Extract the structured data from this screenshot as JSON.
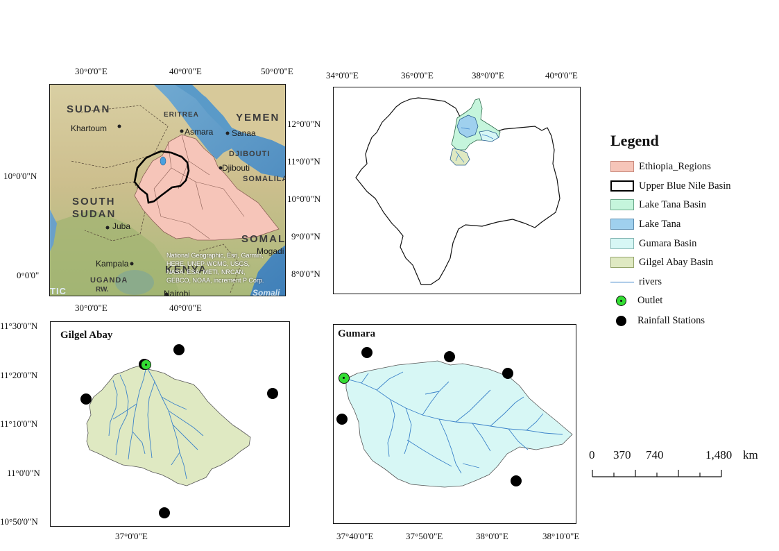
{
  "overview_map": {
    "top_ticks": [
      "30°0'0\"E",
      "40°0'0\"E",
      "50°0'0\"E"
    ],
    "bottom_ticks": [
      "30°0'0\"E",
      "40°0'0\"E"
    ],
    "left_ticks": [
      "10°0'0\"N",
      "0°0'0\""
    ],
    "countries": {
      "sudan": "SUDAN",
      "eritrea": "ERITREA",
      "yemen": "YEMEN",
      "djibouti": "DJIBOUTI",
      "somaliland": "SOMALILAN",
      "south_sudan_1": "SOUTH",
      "south_sudan_2": "SUDAN",
      "somalia": "SOMALIA",
      "kenya": "KENYA",
      "uganda": "UGANDA",
      "rw": "RW.",
      "somali_sea": "Somali",
      "tic": "TIC"
    },
    "cities": {
      "khartoum": "Khartoum",
      "asmara": "Asmara",
      "sanaa": "Sanaa",
      "djibouti": "Djibouti",
      "juba": "Juba",
      "kampala": "Kampala",
      "nairobi": "Nairobi",
      "mogadishu": "Mogadi"
    },
    "credits": [
      "National Geographic, Esri, Garmin,",
      "HERE, UNEP-WCMC, USGS,",
      "NASA, ESA, METI, NRCAN,",
      "GEBCO, NOAA, increment P Corp."
    ]
  },
  "basin_map": {
    "top_ticks": [
      "34°0'0\"E",
      "36°0'0\"E",
      "38°0'0\"E",
      "40°0'0\"E"
    ],
    "left_ticks": [
      "12°0'0\"N",
      "11°0'0\"N",
      "10°0'0\"N",
      "9°0'0\"N",
      "8°0'0\"N"
    ]
  },
  "gilgel_map": {
    "title": "Gilgel Abay",
    "left_ticks": [
      "11°30'0\"N",
      "11°20'0\"N",
      "11°10'0\"N",
      "11°0'0\"N",
      "10°50'0\"N"
    ],
    "bottom_ticks": [
      "37°0'0\"E"
    ]
  },
  "gumara_map": {
    "title": "Gumara",
    "bottom_ticks": [
      "37°40'0\"E",
      "37°50'0\"E",
      "38°0'0\"E",
      "38°10'0\"E"
    ]
  },
  "legend": {
    "title": "Legend",
    "items": [
      {
        "label": "Ethiopia_Regions",
        "kind": "fill",
        "color": "#f6c5b9",
        "border": "#c98b7e"
      },
      {
        "label": "Upper Blue Nile Basin",
        "kind": "outline",
        "color": "#ffffff",
        "border": "#000000"
      },
      {
        "label": "Lake Tana Basin",
        "kind": "fill",
        "color": "#c5f5dc",
        "border": "#6aa88a"
      },
      {
        "label": "Lake Tana",
        "kind": "fill",
        "color": "#9fd0ee",
        "border": "#5f8fb0"
      },
      {
        "label": "Gumara Basin",
        "kind": "fill",
        "color": "#d7f7f5",
        "border": "#86b8b5"
      },
      {
        "label": "Gilgel Abay Basin",
        "kind": "fill",
        "color": "#dfe9c2",
        "border": "#95a56c"
      },
      {
        "label": "rivers",
        "kind": "line",
        "color": "#3b82c9"
      },
      {
        "label": "Outlet",
        "kind": "outlet",
        "color": "#33dd33"
      },
      {
        "label": "Rainfall Stations",
        "kind": "station",
        "color": "#000000"
      }
    ]
  },
  "scale_bar": {
    "labels": [
      "0",
      "370",
      "740",
      "1,480"
    ],
    "unit": "km"
  }
}
